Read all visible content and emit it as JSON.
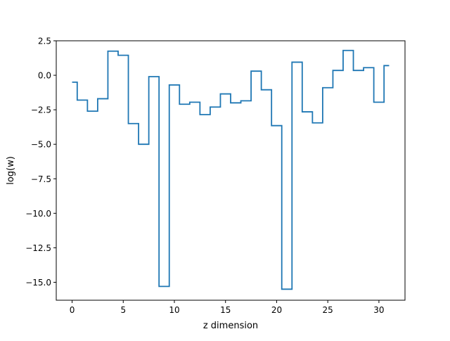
{
  "chart_data": {
    "type": "line",
    "drawstyle": "steps-mid",
    "title": "",
    "xlabel": "z dimension",
    "ylabel": "log(w)",
    "xlim": [
      -1.55,
      32.55
    ],
    "ylim": [
      -16.3,
      2.5
    ],
    "xticks": [
      0,
      5,
      10,
      15,
      20,
      25,
      30
    ],
    "xtick_labels": [
      "0",
      "5",
      "10",
      "15",
      "20",
      "25",
      "30"
    ],
    "yticks": [
      2.5,
      0.0,
      -2.5,
      -5.0,
      -7.5,
      -10.0,
      -12.5,
      -15.0
    ],
    "ytick_labels": [
      "2.5",
      "0.0",
      "−2.5",
      "−5.0",
      "−7.5",
      "−10.0",
      "−12.5",
      "−15.0"
    ],
    "grid": false,
    "legend": "none",
    "series": [
      {
        "color": "#1f77b4",
        "x": [
          0,
          1,
          2,
          3,
          4,
          5,
          6,
          7,
          8,
          9,
          10,
          11,
          12,
          13,
          14,
          15,
          16,
          17,
          18,
          19,
          20,
          21,
          22,
          23,
          24,
          25,
          26,
          27,
          28,
          29,
          30,
          31
        ],
        "values": [
          -0.5,
          -1.8,
          -2.6,
          -1.7,
          1.75,
          1.45,
          -3.5,
          -5.0,
          -0.1,
          -15.3,
          -0.7,
          -2.1,
          -1.95,
          -2.85,
          -2.3,
          -1.35,
          -2.0,
          -1.85,
          0.3,
          -1.05,
          -3.65,
          -15.5,
          0.95,
          -2.65,
          -3.45,
          -0.9,
          0.35,
          1.8,
          0.35,
          0.55,
          -1.95,
          0.7
        ]
      }
    ]
  }
}
